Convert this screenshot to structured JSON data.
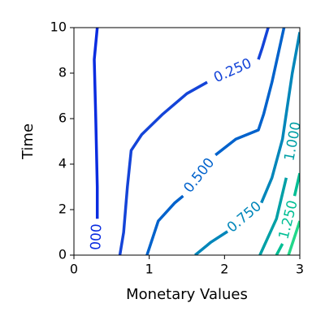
{
  "chart_data": {
    "type": "contour",
    "xlabel": "Monetary Values",
    "ylabel": "Time",
    "xlim": [
      0,
      3
    ],
    "ylim": [
      0,
      10
    ],
    "xticks": [
      0,
      1,
      2,
      3
    ],
    "yticks": [
      0,
      2,
      4,
      6,
      8,
      10
    ],
    "levels": [
      {
        "value": 0,
        "label": "000",
        "color": "#0a2ce0",
        "x": [
          0.31,
          0.27,
          0.29,
          0.31,
          0.31,
          null,
          0.29
        ],
        "y": [
          10,
          8.6,
          6,
          3,
          1.6,
          null,
          0
        ]
      },
      {
        "value": 0.25,
        "label": "0.250",
        "color": "#1444d8",
        "x": [
          0.61,
          0.66,
          0.71,
          0.76,
          0.9,
          1.18,
          1.5,
          1.77,
          null,
          2.45,
          2.5,
          2.58
        ],
        "y": [
          0,
          1.0,
          3.0,
          4.6,
          5.3,
          6.2,
          7.1,
          7.6,
          null,
          8.6,
          9.1,
          10
        ]
      },
      {
        "value": 0.5,
        "label": "0.500",
        "color": "#0062cc",
        "x": [
          0.97,
          1.12,
          1.34,
          1.45,
          null,
          1.88,
          2.15,
          2.45,
          2.52,
          2.63,
          2.79
        ],
        "y": [
          0,
          1.5,
          2.3,
          2.6,
          null,
          4.4,
          5.1,
          5.5,
          6.2,
          7.6,
          10
        ]
      },
      {
        "value": 0.75,
        "label": "0.750",
        "color": "#0086ba",
        "x": [
          1.61,
          1.82,
          2.04,
          null,
          2.49,
          2.63,
          2.77,
          2.9,
          3.0
        ],
        "y": [
          0,
          0.57,
          1.04,
          null,
          2.3,
          3.4,
          5.1,
          8.0,
          9.8
        ]
      },
      {
        "value": 1.0,
        "label": "1.000",
        "color": "#00a0a6",
        "x": [
          2.47,
          2.69,
          2.82,
          null,
          3.0
        ],
        "y": [
          0,
          1.6,
          3.4,
          null,
          6.6
        ]
      },
      {
        "value": 1.25,
        "label": "1.250",
        "color": "#00be94",
        "x": [
          2.69,
          2.77,
          null,
          2.93,
          3.0
        ],
        "y": [
          0,
          0.5,
          null,
          2.6,
          3.6
        ]
      },
      {
        "value": 1.5,
        "label": null,
        "color": "#22d88a",
        "x": [
          2.85,
          3.0
        ],
        "y": [
          0,
          1.5
        ]
      }
    ]
  }
}
